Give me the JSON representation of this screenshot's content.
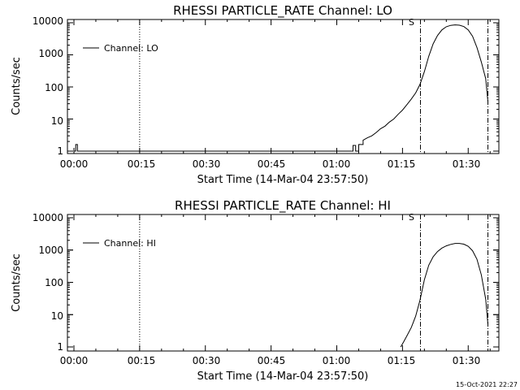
{
  "footer_timestamp": "15-Oct-2021 22:27",
  "chart_data": [
    {
      "type": "line",
      "title": "RHESSI PARTICLE_RATE Channel: LO",
      "xlabel": "Start Time (14-Mar-04 23:57:50)",
      "ylabel": "Counts/sec",
      "yscale": "log",
      "ylim": [
        1,
        10000
      ],
      "xlim_minutes": [
        0,
        97
      ],
      "x_tick_labels": [
        "00:00",
        "00:15",
        "00:30",
        "00:45",
        "01:00",
        "01:15",
        "01:30"
      ],
      "x_ticks_minutes": [
        0,
        15,
        30,
        45,
        60,
        75,
        90
      ],
      "y_tick_labels": [
        "1",
        "10",
        "100",
        "1000",
        "10000"
      ],
      "y_ticks": [
        1,
        10,
        100,
        1000,
        10000
      ],
      "legend": {
        "position": "top-left",
        "entry": "Channel: LO"
      },
      "marker_label": "S",
      "vertical_lines": [
        {
          "x_minutes": 15,
          "style": "dotted"
        },
        {
          "x_minutes": 79.1,
          "style": "dashdot"
        },
        {
          "x_minutes": 94.5,
          "style": "dashdot"
        }
      ],
      "series": [
        {
          "name": "Channel: LO",
          "x_minutes": [
            0,
            0.4,
            0.4,
            0.8,
            0.8,
            1.2,
            63.7,
            63.7,
            64.3,
            64.3,
            65,
            65,
            66,
            66,
            67,
            68,
            69,
            70,
            71,
            72,
            73,
            74,
            75,
            76,
            77,
            78,
            79,
            80,
            81,
            82,
            83,
            84,
            85,
            86,
            87,
            88,
            89,
            90,
            91,
            92,
            93,
            94,
            94.5
          ],
          "values": [
            1,
            1,
            1.6,
            1.6,
            1,
            1,
            1,
            1.5,
            1.5,
            1,
            1,
            1.6,
            1.6,
            2.2,
            2.6,
            3,
            3.8,
            5,
            6,
            8,
            10,
            14,
            19,
            28,
            42,
            65,
            120,
            300,
            900,
            2200,
            4000,
            6000,
            7500,
            8300,
            8600,
            8400,
            7600,
            6000,
            3800,
            1700,
            600,
            180,
            35
          ]
        }
      ]
    },
    {
      "type": "line",
      "title": "RHESSI PARTICLE_RATE Channel: HI",
      "xlabel": "Start Time (14-Mar-04 23:57:50)",
      "ylabel": "Counts/sec",
      "yscale": "log",
      "ylim": [
        1,
        10000
      ],
      "xlim_minutes": [
        0,
        97
      ],
      "x_tick_labels": [
        "00:00",
        "00:15",
        "00:30",
        "00:45",
        "01:00",
        "01:15",
        "01:30"
      ],
      "x_ticks_minutes": [
        0,
        15,
        30,
        45,
        60,
        75,
        90
      ],
      "y_tick_labels": [
        "1",
        "10",
        "100",
        "1000",
        "10000"
      ],
      "y_ticks": [
        1,
        10,
        100,
        1000,
        10000
      ],
      "legend": {
        "position": "top-left",
        "entry": "Channel: HI"
      },
      "marker_label": "S",
      "vertical_lines": [
        {
          "x_minutes": 15,
          "style": "dotted"
        },
        {
          "x_minutes": 79.1,
          "style": "dashdot"
        },
        {
          "x_minutes": 94.5,
          "style": "dashdot"
        }
      ],
      "series": [
        {
          "name": "Channel: HI",
          "x_minutes": [
            74.6,
            75.2,
            76,
            77,
            78,
            79,
            80,
            81,
            82,
            83,
            84,
            85,
            86,
            87,
            88,
            89,
            90,
            91,
            92,
            93,
            94,
            94.5
          ],
          "values": [
            1,
            1.4,
            2.2,
            4,
            9,
            28,
            120,
            340,
            620,
            900,
            1150,
            1350,
            1500,
            1600,
            1600,
            1520,
            1300,
            950,
            520,
            170,
            30,
            5
          ]
        }
      ]
    }
  ]
}
